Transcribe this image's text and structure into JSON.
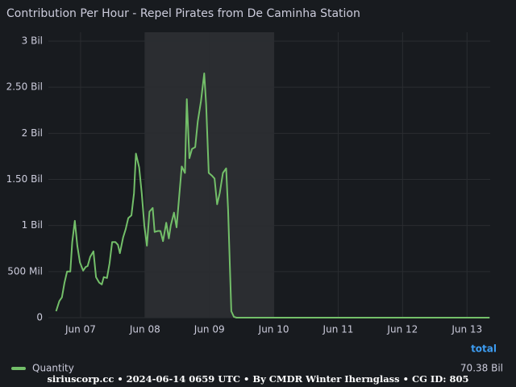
{
  "chart_data": {
    "type": "line",
    "title": "Contribution Per Hour - Repel Pirates from De Caminha Station",
    "x": [
      6.62,
      6.67,
      6.71,
      6.75,
      6.79,
      6.84,
      6.87,
      6.91,
      6.95,
      6.99,
      7.04,
      7.08,
      7.11,
      7.15,
      7.2,
      7.24,
      7.29,
      7.33,
      7.36,
      7.41,
      7.45,
      7.49,
      7.54,
      7.58,
      7.61,
      7.66,
      7.7,
      7.74,
      7.79,
      7.83,
      7.86,
      7.91,
      7.95,
      7.99,
      8.03,
      8.07,
      8.12,
      8.15,
      8.2,
      8.24,
      8.28,
      8.33,
      8.37,
      8.4,
      8.45,
      8.49,
      8.53,
      8.57,
      8.62,
      8.65,
      8.69,
      8.73,
      8.78,
      8.82,
      8.87,
      8.92,
      8.95,
      8.99,
      9.04,
      9.08,
      9.12,
      9.16,
      9.21,
      9.26,
      9.29,
      9.34,
      9.38,
      9.42,
      13.35
    ],
    "series": [
      {
        "name": "Quantity",
        "color": "#73bf69",
        "values": [
          0.07,
          0.18,
          0.22,
          0.38,
          0.5,
          0.5,
          0.82,
          1.05,
          0.78,
          0.6,
          0.51,
          0.55,
          0.56,
          0.66,
          0.72,
          0.44,
          0.38,
          0.36,
          0.44,
          0.43,
          0.59,
          0.82,
          0.82,
          0.79,
          0.7,
          0.87,
          0.96,
          1.08,
          1.11,
          1.35,
          1.78,
          1.63,
          1.35,
          1.0,
          0.78,
          1.15,
          1.19,
          0.93,
          0.94,
          0.94,
          0.83,
          1.03,
          0.86,
          1.0,
          1.14,
          0.98,
          1.31,
          1.64,
          1.57,
          2.37,
          1.73,
          1.83,
          1.85,
          2.13,
          2.35,
          2.65,
          2.31,
          1.57,
          1.54,
          1.51,
          1.23,
          1.35,
          1.57,
          1.62,
          1.17,
          0.07,
          0.01,
          0,
          0
        ],
        "total": "70.38 Bil"
      }
    ],
    "legend_header": "total",
    "region": [
      8,
      10
    ],
    "xlim": [
      6.5,
      13.36
    ],
    "xticks": [
      {
        "value": 7,
        "label": "Jun 07"
      },
      {
        "value": 8,
        "label": "Jun 08"
      },
      {
        "value": 9,
        "label": "Jun 09"
      },
      {
        "value": 10,
        "label": "Jun 10"
      },
      {
        "value": 11,
        "label": "Jun 11"
      },
      {
        "value": 12,
        "label": "Jun 12"
      },
      {
        "value": 13,
        "label": "Jun 13"
      }
    ],
    "ylim": [
      0,
      3
    ],
    "yticks": [
      0,
      {
        "value": 0.5,
        "label": "500 Mil"
      },
      {
        "value": 1,
        "label": "1 Bil"
      },
      {
        "value": 1.5,
        "label": "1.50 Bil"
      },
      {
        "value": 2,
        "label": "2 Bil"
      },
      {
        "value": 2.5,
        "label": "2.50 Bil"
      },
      {
        "value": 3,
        "label": "3 Bil"
      }
    ],
    "grid": true,
    "footer": "siriuscorp.cc • 2024-06-14 0659 UTC • By CMDR Winter Ihernglass • CG ID: 805"
  }
}
